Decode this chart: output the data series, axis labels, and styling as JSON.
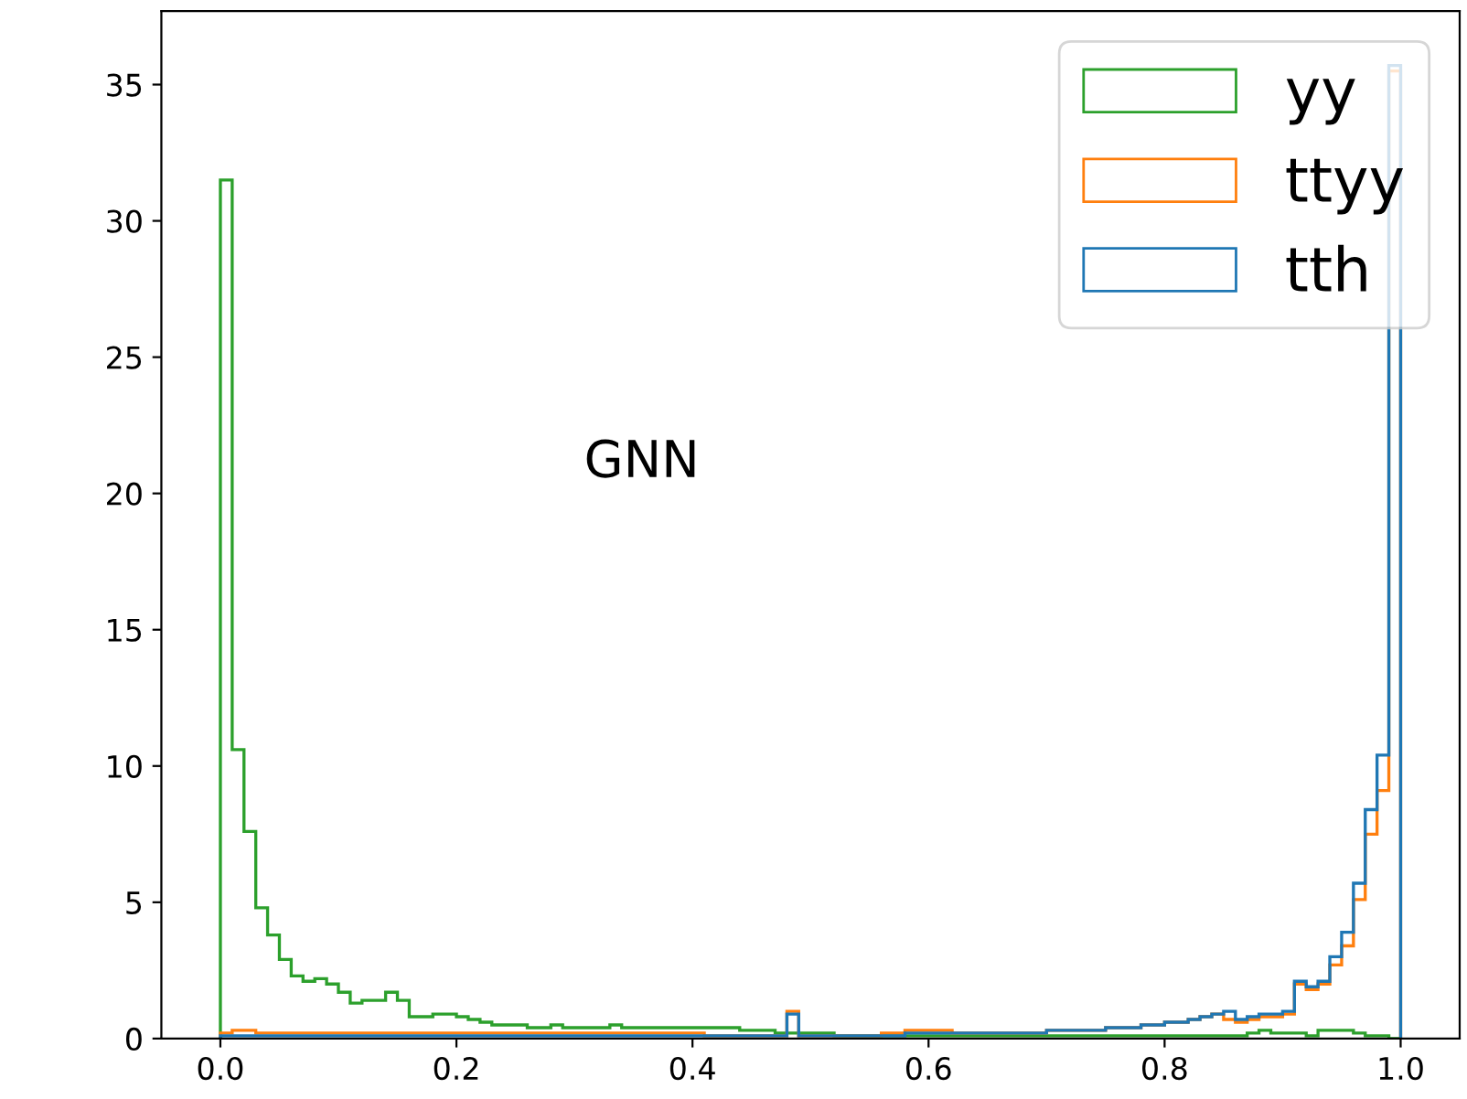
{
  "chart_data": {
    "type": "histogram",
    "bins": [
      0.0,
      0.01,
      0.02,
      0.03,
      0.04,
      0.05,
      0.06,
      0.07,
      0.08,
      0.09,
      0.1,
      0.11,
      0.12,
      0.13,
      0.14,
      0.15,
      0.16,
      0.17,
      0.18,
      0.19,
      0.2,
      0.21,
      0.22,
      0.23,
      0.24,
      0.25,
      0.26,
      0.27,
      0.28,
      0.29,
      0.3,
      0.31,
      0.32,
      0.33,
      0.34,
      0.35,
      0.36,
      0.37,
      0.38,
      0.39,
      0.4,
      0.41,
      0.42,
      0.43,
      0.44,
      0.45,
      0.46,
      0.47,
      0.48,
      0.49,
      0.5,
      0.51,
      0.52,
      0.53,
      0.54,
      0.55,
      0.56,
      0.57,
      0.58,
      0.59,
      0.6,
      0.61,
      0.62,
      0.63,
      0.64,
      0.65,
      0.66,
      0.67,
      0.68,
      0.69,
      0.7,
      0.71,
      0.72,
      0.73,
      0.74,
      0.75,
      0.76,
      0.77,
      0.78,
      0.79,
      0.8,
      0.81,
      0.82,
      0.83,
      0.84,
      0.85,
      0.86,
      0.87,
      0.88,
      0.89,
      0.9,
      0.91,
      0.92,
      0.93,
      0.94,
      0.95,
      0.96,
      0.97,
      0.98,
      0.99,
      1.0
    ],
    "series": [
      {
        "name": "yy",
        "color": "#2ca02c",
        "values": [
          31.5,
          10.6,
          7.6,
          4.8,
          3.8,
          2.9,
          2.3,
          2.1,
          2.2,
          2.0,
          1.7,
          1.3,
          1.4,
          1.4,
          1.7,
          1.4,
          0.8,
          0.8,
          0.9,
          0.9,
          0.8,
          0.7,
          0.6,
          0.5,
          0.5,
          0.5,
          0.4,
          0.4,
          0.5,
          0.4,
          0.4,
          0.4,
          0.4,
          0.5,
          0.4,
          0.4,
          0.4,
          0.4,
          0.4,
          0.4,
          0.4,
          0.4,
          0.4,
          0.4,
          0.3,
          0.3,
          0.3,
          0.2,
          0.2,
          0.2,
          0.2,
          0.2,
          0.1,
          0.1,
          0.1,
          0.1,
          0.1,
          0.1,
          0.1,
          0.1,
          0.1,
          0.1,
          0.1,
          0.1,
          0.1,
          0.1,
          0.1,
          0.1,
          0.1,
          0.1,
          0.1,
          0.1,
          0.1,
          0.1,
          0.1,
          0.1,
          0.1,
          0.1,
          0.1,
          0.1,
          0.1,
          0.1,
          0.1,
          0.1,
          0.1,
          0.1,
          0.1,
          0.2,
          0.3,
          0.2,
          0.2,
          0.2,
          0.1,
          0.3,
          0.3,
          0.3,
          0.2,
          0.1,
          0.1,
          0.0
        ]
      },
      {
        "name": "ttyy",
        "color": "#ff7f0e",
        "values": [
          0.2,
          0.3,
          0.3,
          0.2,
          0.2,
          0.2,
          0.2,
          0.2,
          0.2,
          0.2,
          0.2,
          0.2,
          0.2,
          0.2,
          0.2,
          0.2,
          0.2,
          0.2,
          0.2,
          0.2,
          0.2,
          0.2,
          0.2,
          0.2,
          0.2,
          0.2,
          0.2,
          0.2,
          0.2,
          0.2,
          0.2,
          0.2,
          0.2,
          0.2,
          0.2,
          0.2,
          0.2,
          0.2,
          0.2,
          0.2,
          0.2,
          0.1,
          0.1,
          0.1,
          0.1,
          0.1,
          0.1,
          0.1,
          1.0,
          0.1,
          0.1,
          0.1,
          0.1,
          0.1,
          0.1,
          0.1,
          0.2,
          0.2,
          0.3,
          0.3,
          0.3,
          0.3,
          0.2,
          0.2,
          0.2,
          0.2,
          0.2,
          0.2,
          0.2,
          0.2,
          0.3,
          0.3,
          0.3,
          0.3,
          0.3,
          0.4,
          0.4,
          0.4,
          0.5,
          0.5,
          0.6,
          0.6,
          0.7,
          0.8,
          0.9,
          0.7,
          0.6,
          0.7,
          0.8,
          0.8,
          0.9,
          2.0,
          1.8,
          2.0,
          2.7,
          3.4,
          5.1,
          7.5,
          9.1,
          35.5
        ]
      },
      {
        "name": "tth",
        "color": "#1f77b4",
        "values": [
          0.1,
          0.1,
          0.1,
          0.1,
          0.1,
          0.1,
          0.1,
          0.1,
          0.1,
          0.1,
          0.1,
          0.1,
          0.1,
          0.1,
          0.1,
          0.1,
          0.1,
          0.1,
          0.1,
          0.1,
          0.1,
          0.1,
          0.1,
          0.1,
          0.1,
          0.1,
          0.1,
          0.1,
          0.1,
          0.1,
          0.1,
          0.1,
          0.1,
          0.1,
          0.1,
          0.1,
          0.1,
          0.1,
          0.1,
          0.1,
          0.1,
          0.1,
          0.1,
          0.1,
          0.1,
          0.1,
          0.1,
          0.1,
          0.9,
          0.1,
          0.1,
          0.1,
          0.1,
          0.1,
          0.1,
          0.1,
          0.1,
          0.1,
          0.2,
          0.2,
          0.2,
          0.2,
          0.2,
          0.2,
          0.2,
          0.2,
          0.2,
          0.2,
          0.2,
          0.2,
          0.3,
          0.3,
          0.3,
          0.3,
          0.3,
          0.4,
          0.4,
          0.4,
          0.5,
          0.5,
          0.6,
          0.6,
          0.7,
          0.8,
          0.9,
          1.0,
          0.7,
          0.8,
          0.9,
          0.9,
          1.0,
          2.1,
          1.9,
          2.1,
          3.0,
          3.9,
          5.7,
          8.4,
          10.4,
          35.7
        ]
      }
    ],
    "annotations": [
      "GNN"
    ],
    "xlim": [
      -0.05,
      1.05
    ],
    "xticks": [
      {
        "value": 0.0,
        "label": "0.0"
      },
      {
        "value": 0.2,
        "label": "0.2"
      },
      {
        "value": 0.4,
        "label": "0.4"
      },
      {
        "value": 0.6,
        "label": "0.6"
      },
      {
        "value": 0.8,
        "label": "0.8"
      },
      {
        "value": 1.0,
        "label": "1.0"
      }
    ],
    "ylim": [
      0,
      37.7
    ],
    "yticks": [
      0,
      5,
      10,
      15,
      20,
      25,
      30,
      35
    ],
    "legend": "top right",
    "grid": false
  }
}
